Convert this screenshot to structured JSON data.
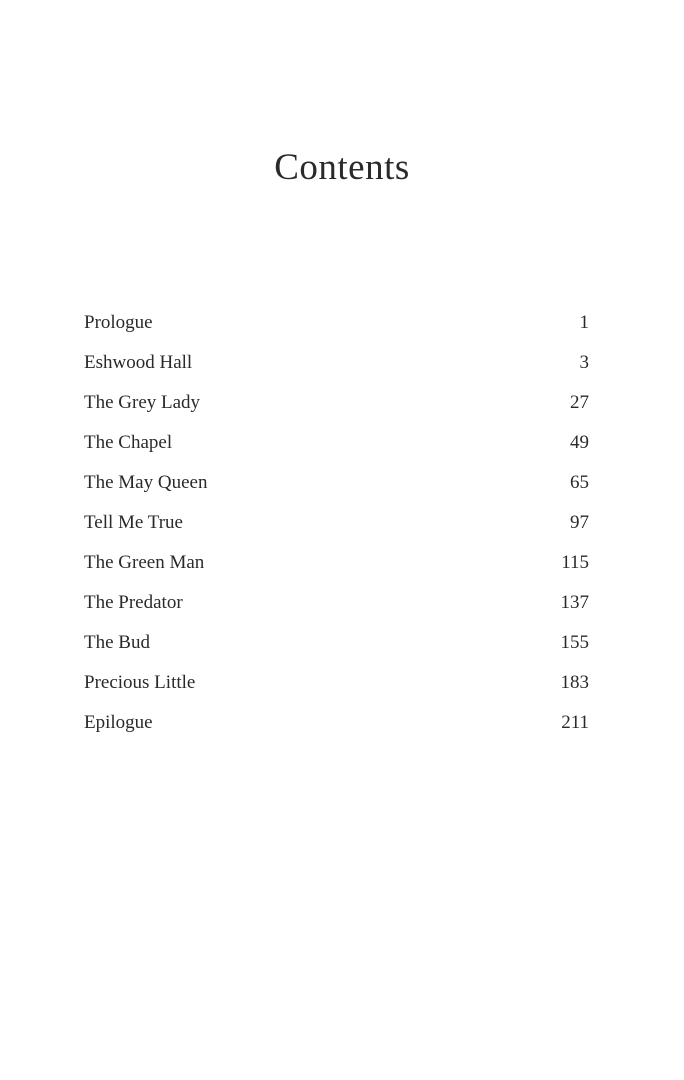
{
  "title": "Contents",
  "entries": [
    {
      "label": "Prologue",
      "page": "1"
    },
    {
      "label": "Eshwood Hall",
      "page": "3"
    },
    {
      "label": "The Grey Lady",
      "page": "27"
    },
    {
      "label": "The Chapel",
      "page": "49"
    },
    {
      "label": "The May Queen",
      "page": "65"
    },
    {
      "label": "Tell Me True",
      "page": "97"
    },
    {
      "label": "The Green Man",
      "page": "115"
    },
    {
      "label": "The Predator",
      "page": "137"
    },
    {
      "label": "The Bud",
      "page": "155"
    },
    {
      "label": "Precious Little",
      "page": "183"
    },
    {
      "label": "Epilogue",
      "page": "211"
    }
  ]
}
